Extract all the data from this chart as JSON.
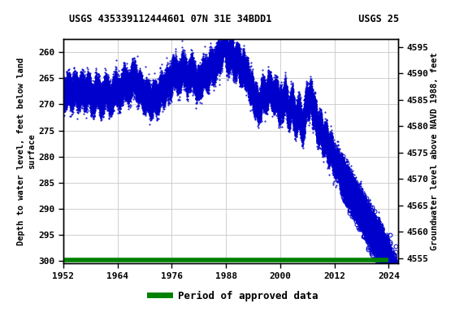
{
  "title_left": "USGS 435339112444601 07N 31E 34BDD1",
  "title_right": "USGS 25",
  "ylabel_left": "Depth to water level, feet below land\nsurface",
  "ylabel_right": "Groundwater level above NAVD 1988, feet",
  "ylim_left": [
    300.5,
    257.5
  ],
  "ylim_right": [
    4554.0,
    4596.5
  ],
  "xlim": [
    1952,
    2026
  ],
  "yticks_left": [
    260,
    265,
    270,
    275,
    280,
    285,
    290,
    295,
    300
  ],
  "yticks_right": [
    4595,
    4590,
    4585,
    4580,
    4575,
    4570,
    4565,
    4560,
    4555
  ],
  "xticks": [
    1952,
    1964,
    1976,
    1988,
    2000,
    2012,
    2024
  ],
  "legend_label": "Period of approved data",
  "legend_color": "#008000",
  "line_color": "#0000CC",
  "background_color": "#ffffff",
  "grid_color": "#c8c8c8",
  "approved_line_y": 299.8
}
